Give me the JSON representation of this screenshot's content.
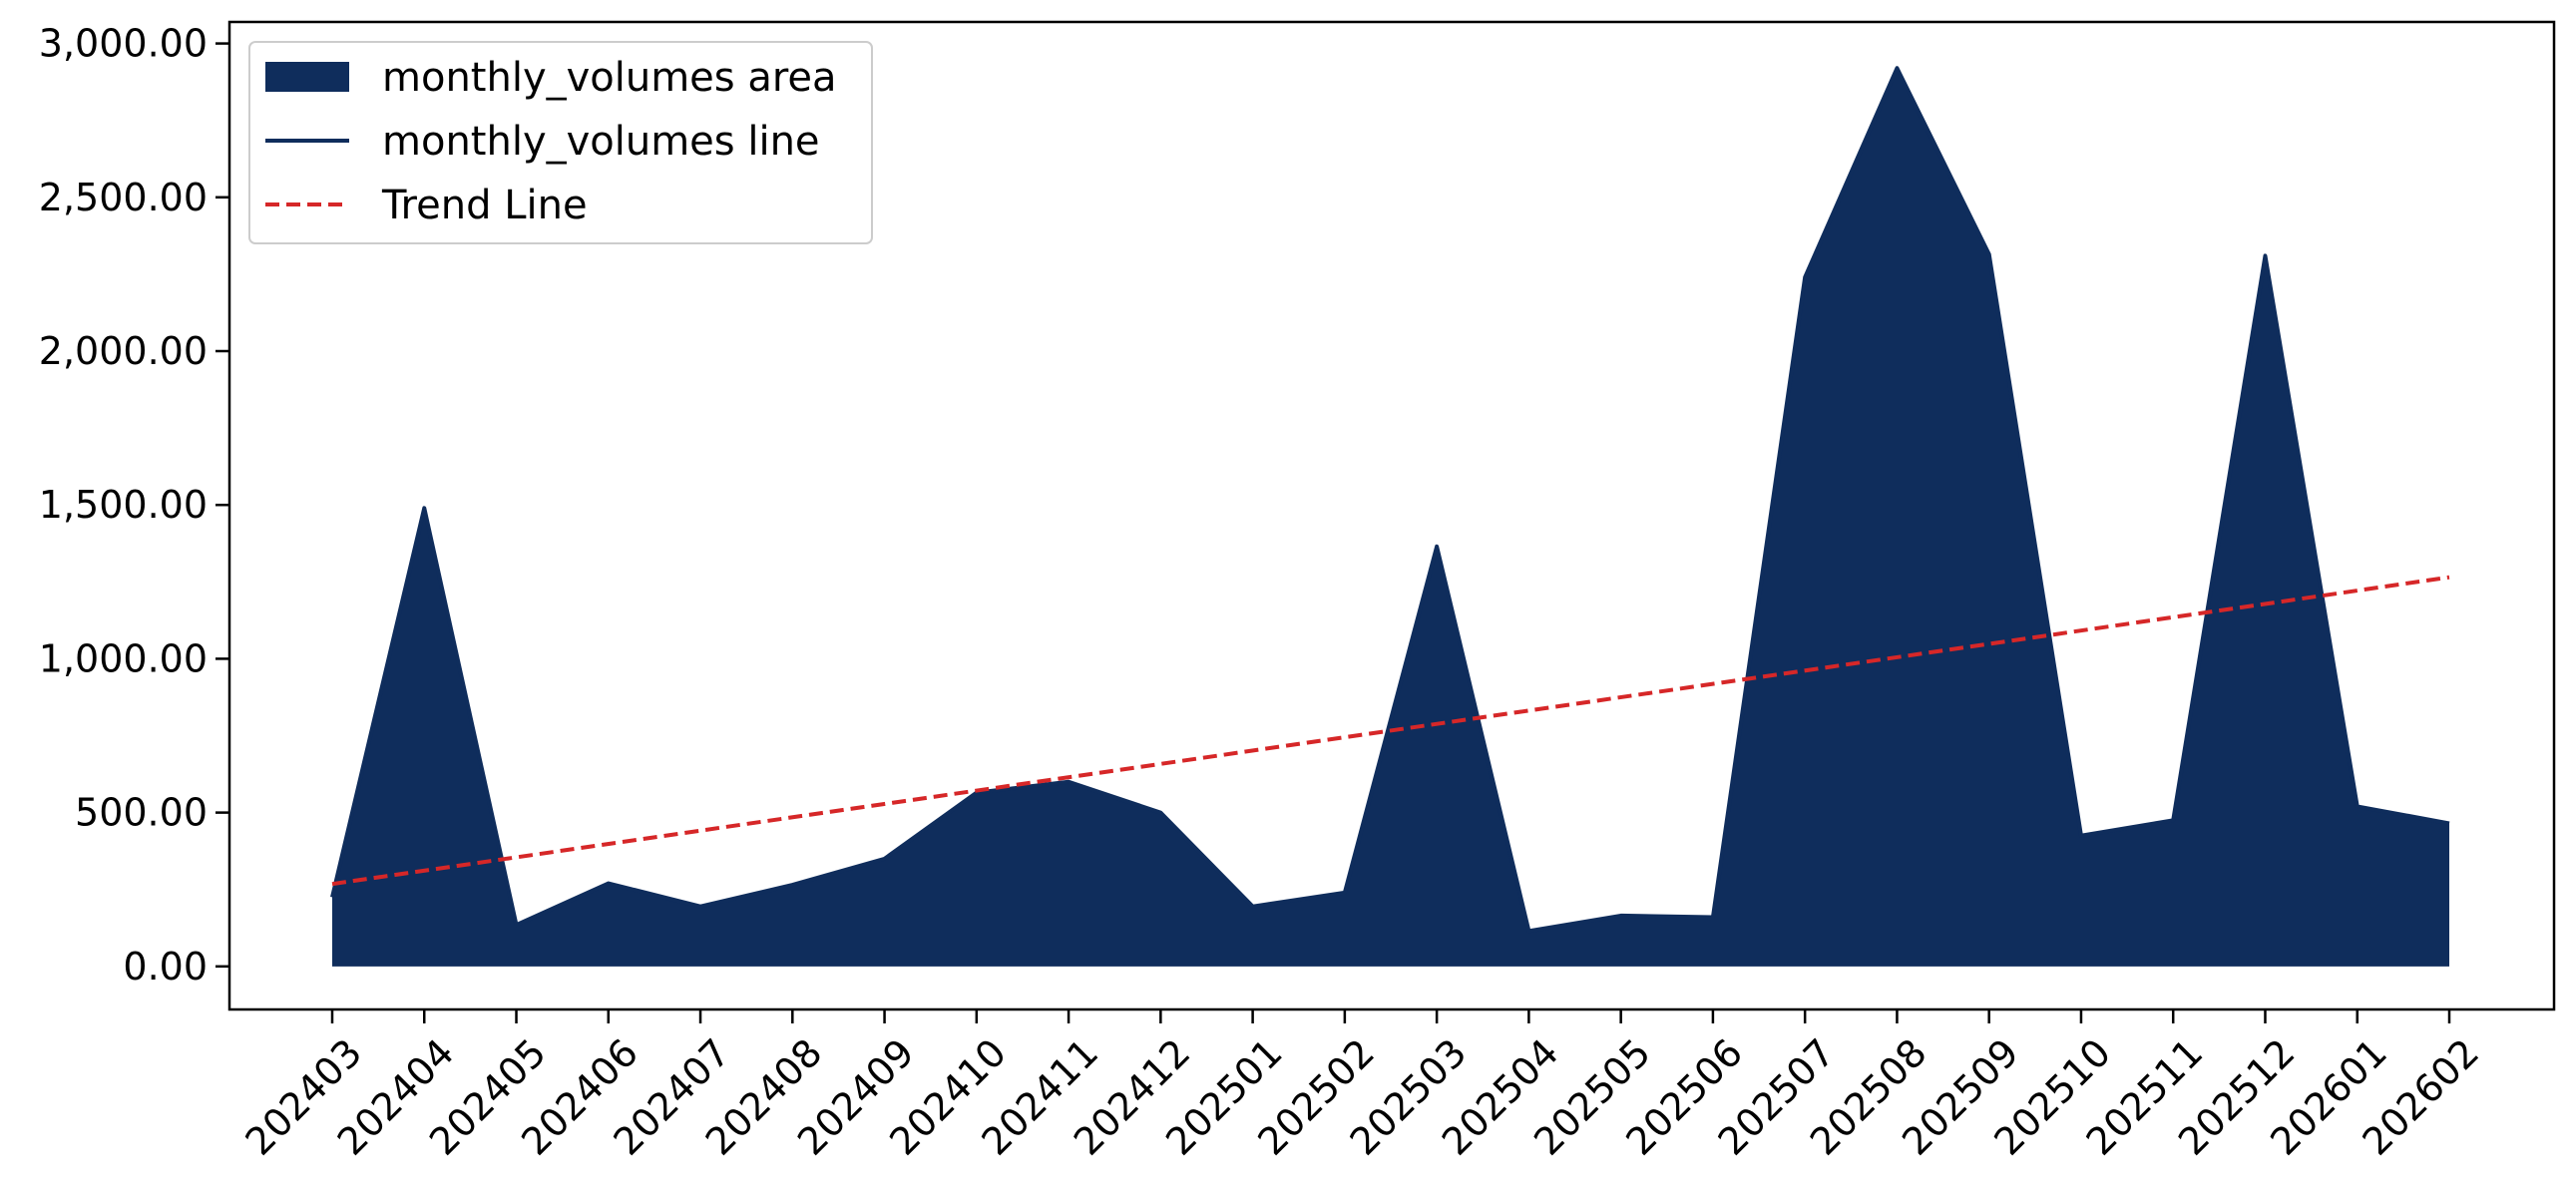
{
  "chart_data": {
    "type": "area",
    "categories": [
      "202403",
      "202404",
      "202405",
      "202406",
      "202407",
      "202408",
      "202409",
      "202410",
      "202411",
      "202412",
      "202501",
      "202502",
      "202503",
      "202504",
      "202505",
      "202506",
      "202507",
      "202508",
      "202509",
      "202510",
      "202511",
      "202512",
      "202601",
      "202602"
    ],
    "series": [
      {
        "name": "monthly_volumes area",
        "kind": "area",
        "color": "#0f2d5c",
        "values": [
          225,
          1490,
          135,
          270,
          195,
          265,
          350,
          565,
          600,
          500,
          195,
          240,
          1365,
          115,
          165,
          160,
          2240,
          2920,
          2315,
          425,
          475,
          2310,
          520,
          465
        ]
      },
      {
        "name": "monthly_volumes line",
        "kind": "line",
        "color": "#0f2d5c",
        "values": [
          225,
          1490,
          135,
          270,
          195,
          265,
          350,
          565,
          600,
          500,
          195,
          240,
          1365,
          115,
          165,
          160,
          2240,
          2920,
          2315,
          425,
          475,
          2310,
          520,
          465
        ]
      },
      {
        "name": "Trend Line",
        "kind": "trend",
        "color": "#d62728",
        "start": 268,
        "end": 1265
      }
    ],
    "y_ticks": [
      "0.00",
      "500.00",
      "1,000.00",
      "1,500.00",
      "2,000.00",
      "2,500.00",
      "3,000.00"
    ],
    "y_tick_values": [
      0,
      500,
      1000,
      1500,
      2000,
      2500,
      3000
    ],
    "ylim": [
      -140,
      3070
    ],
    "legend": "top-left",
    "grid": false
  }
}
